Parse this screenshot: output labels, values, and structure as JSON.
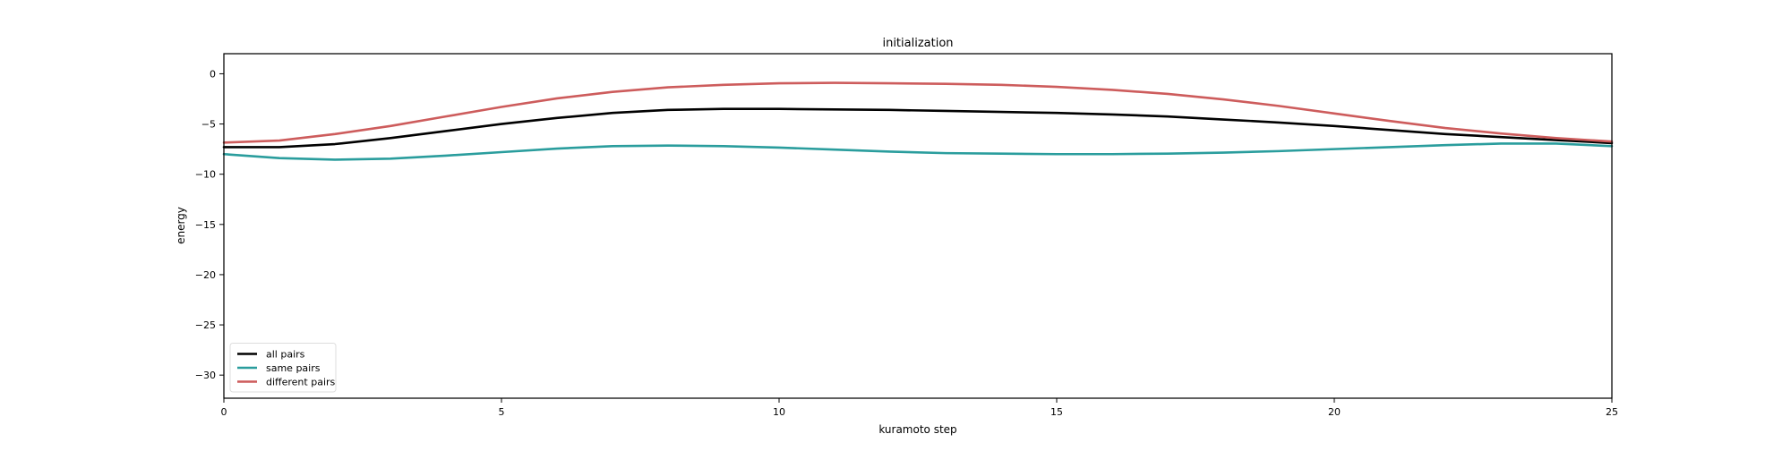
{
  "chart_data": {
    "type": "line",
    "title": "initialization",
    "xlabel": "kuramoto step",
    "ylabel": "energy",
    "xlim": [
      0,
      25
    ],
    "ylim": [
      -32.3,
      2
    ],
    "xticks": [
      0,
      5,
      10,
      15,
      20,
      25
    ],
    "xtick_labels": [
      "0",
      "5",
      "10",
      "15",
      "20",
      "25"
    ],
    "yticks": [
      0,
      -5,
      -10,
      -15,
      -20,
      -25,
      -30
    ],
    "ytick_labels": [
      "0",
      "−5",
      "−10",
      "−15",
      "−20",
      "−25",
      "−30"
    ],
    "grid": false,
    "legend_position": "lower-left",
    "x": [
      0,
      1,
      2,
      3,
      4,
      5,
      6,
      7,
      8,
      9,
      10,
      11,
      12,
      13,
      14,
      15,
      16,
      17,
      18,
      19,
      20,
      21,
      22,
      23,
      24,
      25
    ],
    "series": [
      {
        "name": "all pairs",
        "color": "#000000",
        "values": [
          -7.3,
          -7.3,
          -7.0,
          -6.4,
          -5.7,
          -5.0,
          -4.4,
          -3.9,
          -3.6,
          -3.5,
          -3.5,
          -3.55,
          -3.6,
          -3.7,
          -3.8,
          -3.9,
          -4.05,
          -4.25,
          -4.55,
          -4.85,
          -5.2,
          -5.6,
          -6.0,
          -6.3,
          -6.6,
          -6.9
        ]
      },
      {
        "name": "same pairs",
        "color": "#2a9d9d",
        "values": [
          -8.0,
          -8.4,
          -8.55,
          -8.45,
          -8.15,
          -7.8,
          -7.45,
          -7.2,
          -7.15,
          -7.2,
          -7.35,
          -7.55,
          -7.75,
          -7.9,
          -7.95,
          -8.0,
          -8.0,
          -7.95,
          -7.85,
          -7.7,
          -7.5,
          -7.3,
          -7.1,
          -6.95,
          -6.95,
          -7.2
        ]
      },
      {
        "name": "different pairs",
        "color": "#cd5c5c",
        "values": [
          -6.85,
          -6.65,
          -6.0,
          -5.2,
          -4.25,
          -3.3,
          -2.45,
          -1.8,
          -1.35,
          -1.1,
          -0.95,
          -0.9,
          -0.95,
          -1.0,
          -1.1,
          -1.3,
          -1.6,
          -2.0,
          -2.55,
          -3.2,
          -3.95,
          -4.7,
          -5.4,
          -5.95,
          -6.4,
          -6.75
        ]
      }
    ]
  }
}
